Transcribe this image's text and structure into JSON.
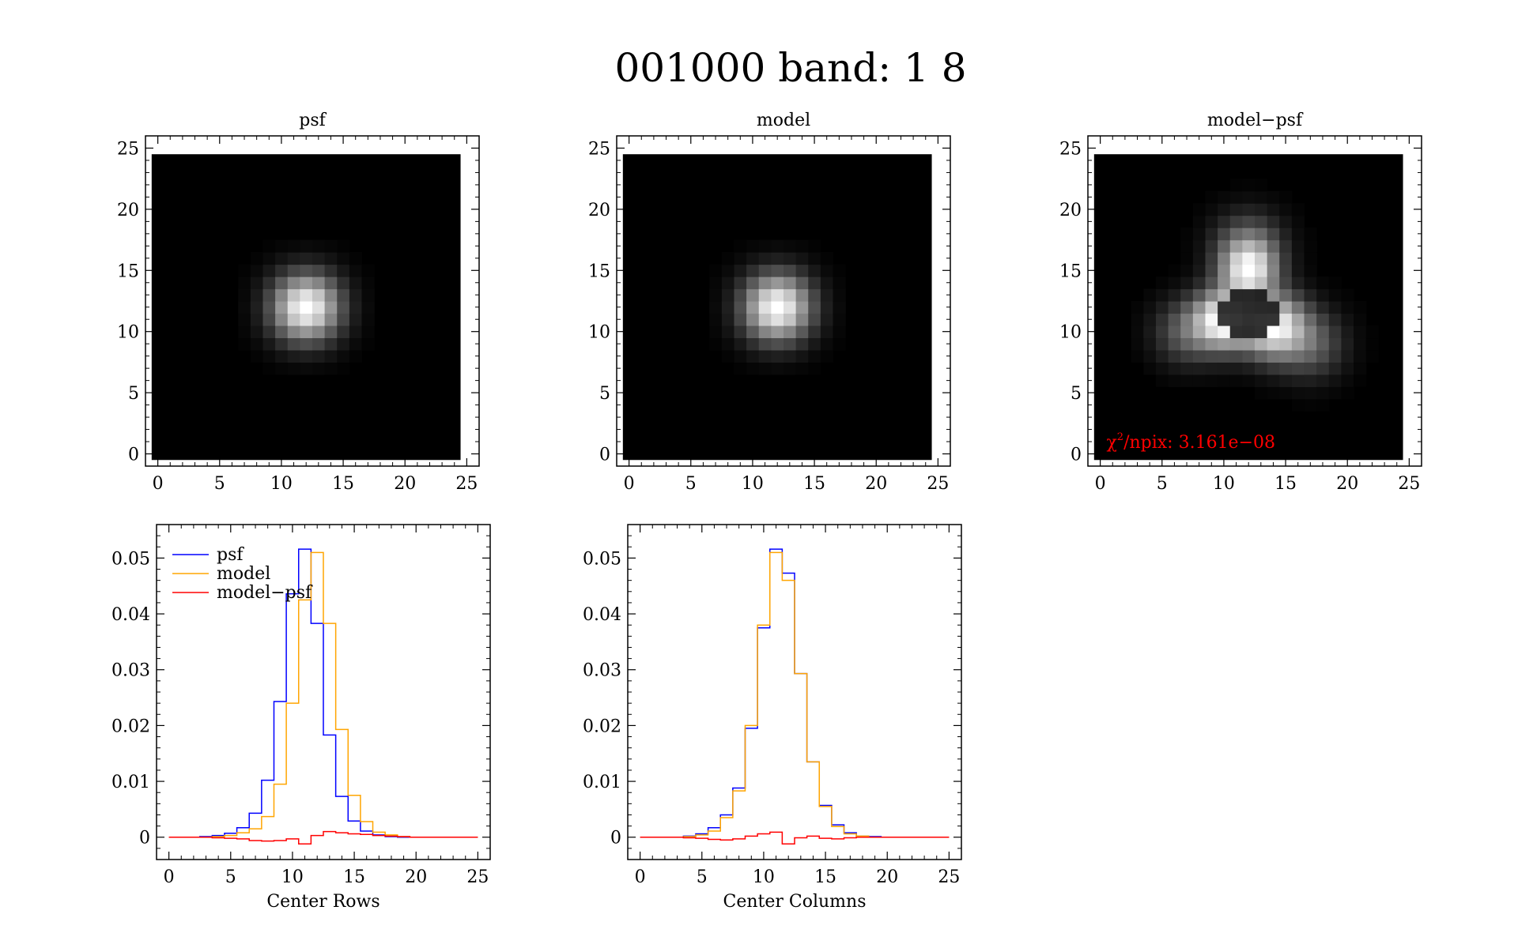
{
  "title": "001000 band: 1 8",
  "colors": {
    "psf": "#0000ff",
    "model": "#ffa500",
    "diff": "#ff0000",
    "frame": "#000000",
    "chi": "#ff0000"
  },
  "chart_data": [
    {
      "type": "heatmap",
      "title": "psf",
      "xlim": [
        0,
        25
      ],
      "ylim": [
        0,
        25
      ],
      "xticks": [
        "0",
        "5",
        "10",
        "15",
        "20",
        "25"
      ],
      "yticks": [
        "0",
        "5",
        "10",
        "15",
        "20",
        "25"
      ],
      "grid_size": 25,
      "peak": [
        12,
        12
      ],
      "sigma": 1.8,
      "colormap": "gray"
    },
    {
      "type": "heatmap",
      "title": "model",
      "xlim": [
        0,
        25
      ],
      "ylim": [
        0,
        25
      ],
      "xticks": [
        "0",
        "5",
        "10",
        "15",
        "20",
        "25"
      ],
      "yticks": [
        "0",
        "5",
        "10",
        "15",
        "20",
        "25"
      ],
      "grid_size": 25,
      "peak": [
        12,
        12
      ],
      "sigma": 1.8,
      "colormap": "gray"
    },
    {
      "type": "heatmap",
      "title": "model−psf",
      "xlim": [
        0,
        25
      ],
      "ylim": [
        0,
        25
      ],
      "xticks": [
        "0",
        "5",
        "10",
        "15",
        "20",
        "25"
      ],
      "yticks": [
        "0",
        "5",
        "10",
        "15",
        "20",
        "25"
      ],
      "grid_size": 25,
      "colormap": "gray",
      "blobs": [
        {
          "x": 10,
          "y": 11,
          "amp": 1.0,
          "sigma": 1.6
        },
        {
          "x": 14,
          "y": 10.5,
          "amp": 0.95,
          "sigma": 1.7
        },
        {
          "x": 12,
          "y": 15,
          "amp": 0.8,
          "sigma": 1.5
        },
        {
          "x": 12,
          "y": 17,
          "amp": 0.35,
          "sigma": 1.8
        },
        {
          "x": 7,
          "y": 10,
          "amp": 0.3,
          "sigma": 1.7
        },
        {
          "x": 17,
          "y": 9,
          "amp": 0.3,
          "sigma": 1.8
        }
      ],
      "annotation": {
        "chi": "χ",
        "sup": "2",
        "text": "/npix: 3.161e−08"
      }
    },
    {
      "type": "line",
      "xlabel": "Center Rows",
      "xlim": [
        -1,
        26
      ],
      "ylim": [
        -0.004,
        0.056
      ],
      "xticks": [
        "0",
        "5",
        "10",
        "15",
        "20",
        "25"
      ],
      "yticks": [
        "0",
        "0.01",
        "0.02",
        "0.03",
        "0.04",
        "0.05"
      ],
      "legend": [
        "psf",
        "model",
        "model−psf"
      ],
      "legend_position": "top-left",
      "x": [
        0,
        1,
        2,
        3,
        4,
        5,
        6,
        7,
        8,
        9,
        10,
        11,
        12,
        13,
        14,
        15,
        16,
        17,
        18,
        19,
        20,
        21,
        22,
        23,
        24,
        25
      ],
      "series": [
        {
          "name": "psf",
          "values": [
            0,
            0,
            0,
            0.0001,
            0.0003,
            0.0007,
            0.0017,
            0.0043,
            0.0102,
            0.0243,
            0.0436,
            0.0516,
            0.0383,
            0.0183,
            0.0073,
            0.0029,
            0.0011,
            0.0004,
            0.0001,
            0,
            0,
            0,
            0,
            0,
            0,
            0
          ]
        },
        {
          "name": "model",
          "values": [
            0,
            0,
            0,
            0,
            0.0001,
            0.0003,
            0.0008,
            0.0015,
            0.0037,
            0.0095,
            0.024,
            0.0425,
            0.051,
            0.0383,
            0.0193,
            0.0075,
            0.0028,
            0.0009,
            0.0004,
            0.0001,
            0,
            0,
            0,
            0,
            0,
            0
          ]
        },
        {
          "name": "model−psf",
          "values": [
            0,
            0,
            0,
            0,
            -0.0001,
            -0.0002,
            -0.0003,
            -0.0006,
            -0.0007,
            -0.0006,
            -0.0003,
            -0.0012,
            0.0003,
            0.001,
            0.0008,
            0.0006,
            0.0005,
            0.0003,
            0.0002,
            0.0001,
            0,
            0,
            0,
            0,
            0,
            0
          ]
        }
      ]
    },
    {
      "type": "line",
      "xlabel": "Center Columns",
      "xlim": [
        -1,
        26
      ],
      "ylim": [
        -0.004,
        0.056
      ],
      "xticks": [
        "0",
        "5",
        "10",
        "15",
        "20",
        "25"
      ],
      "yticks": [
        "0",
        "0.01",
        "0.02",
        "0.03",
        "0.04",
        "0.05"
      ],
      "x": [
        0,
        1,
        2,
        3,
        4,
        5,
        6,
        7,
        8,
        9,
        10,
        11,
        12,
        13,
        14,
        15,
        16,
        17,
        18,
        19,
        20,
        21,
        22,
        23,
        24,
        25
      ],
      "series": [
        {
          "name": "psf",
          "values": [
            0,
            0,
            0,
            0,
            0.0002,
            0.0006,
            0.0017,
            0.004,
            0.0088,
            0.0195,
            0.0375,
            0.0516,
            0.0473,
            0.0293,
            0.0135,
            0.0057,
            0.0022,
            0.0008,
            0.0002,
            0.0001,
            0,
            0,
            0,
            0,
            0,
            0
          ]
        },
        {
          "name": "model",
          "values": [
            0,
            0,
            0,
            0,
            0.0001,
            0.0004,
            0.0011,
            0.0035,
            0.0083,
            0.02,
            0.038,
            0.051,
            0.046,
            0.0293,
            0.0135,
            0.0055,
            0.0019,
            0.0006,
            0.0002,
            0,
            0,
            0,
            0,
            0,
            0,
            0
          ]
        },
        {
          "name": "model−psf",
          "values": [
            0,
            0,
            0,
            0,
            -0.0001,
            -0.0002,
            -0.0004,
            -0.0005,
            -0.0003,
            0.0002,
            0.0006,
            0.0009,
            -0.0012,
            -0.0001,
            0.0002,
            -0.0002,
            -0.0003,
            -0.0001,
            0,
            0,
            0,
            0,
            0,
            0,
            0,
            0
          ]
        }
      ]
    }
  ]
}
